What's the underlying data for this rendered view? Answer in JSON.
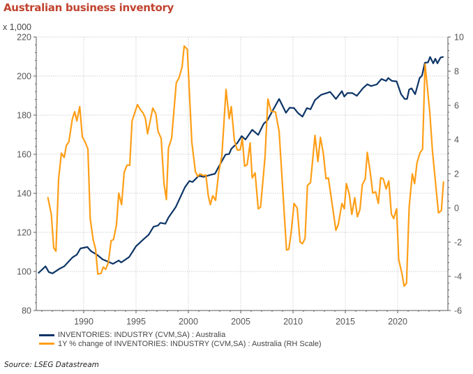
{
  "page": {
    "title": "Australian business inventory",
    "unit_label": "x 1,000",
    "source": "Source:  LSEG Datastream"
  },
  "chart_data": {
    "type": "line",
    "title": "Australian business inventory",
    "xlabel": "",
    "ylabel": "x 1,000",
    "ylabel_right": "",
    "grid": true,
    "legend_position": "bottom-left",
    "xlim": [
      1985.5,
      2024.8
    ],
    "ylim": [
      80,
      220
    ],
    "ylim_right": [
      -6,
      10
    ],
    "x_ticks": [
      1990,
      1995,
      2000,
      2005,
      2010,
      2015,
      2020
    ],
    "y_ticks": [
      80,
      100,
      120,
      140,
      160,
      180,
      200,
      220
    ],
    "y_ticks_right": [
      -6,
      -4,
      -2,
      0,
      2,
      4,
      6,
      8,
      10
    ],
    "series": [
      {
        "name": "INVENTORIES: INDUSTRY (CVM,SA) : Australia",
        "axis": "left",
        "color": "#0c3466",
        "x": [
          1985.69,
          1986.35,
          1986.67,
          1987.02,
          1987.69,
          1988.13,
          1988.91,
          1989.35,
          1989.69,
          1990.35,
          1990.69,
          1991.25,
          1991.8,
          1992.8,
          1993.35,
          1993.58,
          1994.35,
          1995.0,
          1995.67,
          1996.2,
          1996.67,
          1997.1,
          1997.33,
          1997.8,
          1998.1,
          1998.8,
          1999.67,
          2000.1,
          2000.4,
          2001.0,
          2001.45,
          2002.1,
          2002.55,
          2002.8,
          2003.55,
          2003.9,
          2004.1,
          2004.67,
          2005.1,
          2005.45,
          2006.1,
          2006.67,
          2007.2,
          2007.55,
          2008.0,
          2008.67,
          2009.33,
          2009.67,
          2010.1,
          2010.45,
          2010.9,
          2011.33,
          2011.67,
          2012.1,
          2012.67,
          2013.2,
          2013.55,
          2014.1,
          2014.67,
          2014.9,
          2015.2,
          2015.67,
          2016.1,
          2016.67,
          2017.1,
          2017.45,
          2018.0,
          2018.45,
          2018.9,
          2019.1,
          2019.45,
          2019.9,
          2020.33,
          2020.67,
          2020.9,
          2021.1,
          2021.33,
          2021.67,
          2022.1,
          2022.33,
          2022.6,
          2022.9,
          2023.1,
          2023.4,
          2023.6,
          2023.8,
          2024.1,
          2024.33
        ],
        "values": [
          99.3,
          102.6,
          99.6,
          99.0,
          101.4,
          102.6,
          107.1,
          108.6,
          111.8,
          112.5,
          110.4,
          108.6,
          106.2,
          103.9,
          105.6,
          104.6,
          107.4,
          112.9,
          116.3,
          118.7,
          122.9,
          123.5,
          124.9,
          124.4,
          127.6,
          133.0,
          143.1,
          146.3,
          145.8,
          149.0,
          148.4,
          149.4,
          150.0,
          152.6,
          159.8,
          160.1,
          162.7,
          165.7,
          169.3,
          167.5,
          172.5,
          169.9,
          175.6,
          177.3,
          181.8,
          188.3,
          181.2,
          183.8,
          183.6,
          181.2,
          179.2,
          183.6,
          183.0,
          187.7,
          190.4,
          191.3,
          191.9,
          188.3,
          192.3,
          189.5,
          191.3,
          191.3,
          189.9,
          193.7,
          195.8,
          194.9,
          195.7,
          198.5,
          197.5,
          199.0,
          197.5,
          197.3,
          190.7,
          188.3,
          188.3,
          193.1,
          193.7,
          190.7,
          199.0,
          200.2,
          206.8,
          207.0,
          209.8,
          206.5,
          208.9,
          206.5,
          209.5,
          209.8
        ]
      },
      {
        "name": "1Y % change of INVENTORIES: INDUSTRY (CVM,SA) : Australia (RH Scale)",
        "axis": "right",
        "color": "#ff9e16",
        "x": [
          1986.58,
          1986.9,
          1987.13,
          1987.35,
          1987.6,
          1987.87,
          1988.13,
          1988.35,
          1988.58,
          1988.9,
          1989.13,
          1989.35,
          1989.62,
          1989.87,
          1990.13,
          1990.4,
          1990.62,
          1990.9,
          1991.13,
          1991.35,
          1991.65,
          1991.87,
          1992.1,
          1992.35,
          1992.62,
          1992.85,
          1993.13,
          1993.35,
          1993.62,
          1993.87,
          1994.13,
          1994.4,
          1994.62,
          1995.13,
          1995.47,
          1995.67,
          1995.9,
          1996.1,
          1996.6,
          1996.9,
          1997.1,
          1997.4,
          1997.67,
          1997.9,
          1998.1,
          1998.4,
          1998.85,
          1999.1,
          1999.4,
          1999.6,
          1999.9,
          2000.33,
          2000.67,
          2000.9,
          2001.1,
          2001.45,
          2001.67,
          2001.9,
          2002.1,
          2002.33,
          2002.6,
          2002.9,
          2003.2,
          2003.6,
          2003.9,
          2004.1,
          2004.4,
          2004.67,
          2004.95,
          2005.15,
          2005.38,
          2005.62,
          2005.9,
          2006.1,
          2006.38,
          2006.67,
          2006.9,
          2007.33,
          2007.6,
          2007.9,
          2008.33,
          2008.67,
          2009.38,
          2009.6,
          2009.82,
          2010.1,
          2010.4,
          2010.67,
          2010.9,
          2011.15,
          2011.38,
          2011.67,
          2012.1,
          2012.38,
          2012.62,
          2012.9,
          2013.15,
          2013.38,
          2014.1,
          2014.33,
          2014.67,
          2014.9,
          2015.1,
          2015.38,
          2015.62,
          2015.9,
          2016.15,
          2016.4,
          2016.62,
          2016.9,
          2017.1,
          2017.38,
          2017.62,
          2017.9,
          2018.15,
          2018.38,
          2018.62,
          2018.9,
          2019.15,
          2019.4,
          2019.62,
          2019.9,
          2020.1,
          2020.4,
          2020.62,
          2020.85,
          2021.1,
          2021.4,
          2021.62,
          2021.85,
          2022.15,
          2022.38,
          2022.62,
          2023.07,
          2023.33,
          2023.67,
          2023.9,
          2024.18,
          2024.38
        ],
        "values": [
          0.6,
          -0.36,
          -2.33,
          -2.53,
          1.69,
          3.21,
          2.95,
          3.66,
          3.86,
          5.16,
          5.63,
          5.09,
          5.93,
          4.16,
          3.86,
          3.45,
          -0.62,
          -1.85,
          -2.4,
          -3.87,
          -3.83,
          -3.46,
          -3.59,
          -3.21,
          -1.92,
          -1.85,
          -0.97,
          0.87,
          0.19,
          2.09,
          2.5,
          2.5,
          5.09,
          6.04,
          5.7,
          5.56,
          5.22,
          4.34,
          5.84,
          5.5,
          4.48,
          4.07,
          1.42,
          0.49,
          3.52,
          4.07,
          7.33,
          7.6,
          8.24,
          9.47,
          9.28,
          3.87,
          2.12,
          1.85,
          1.99,
          1.89,
          1.93,
          0.73,
          0.19,
          0.71,
          0.44,
          2.09,
          3.05,
          6.93,
          5.22,
          5.93,
          3.93,
          3.39,
          3.39,
          4.07,
          2.44,
          2.53,
          3.8,
          1.76,
          2.05,
          -0.05,
          0.05,
          2.98,
          6.38,
          5.66,
          5.61,
          4.48,
          -2.46,
          -2.42,
          -1.44,
          0.26,
          -0.01,
          -1.99,
          -2.09,
          -1.78,
          1.32,
          1.48,
          4.24,
          2.71,
          4.13,
          3.18,
          1.71,
          1.76,
          -1.31,
          -0.97,
          0.26,
          -0.05,
          1.42,
          0.8,
          -0.38,
          0.6,
          -0.52,
          -0.08,
          1.35,
          1.69,
          3.25,
          2.09,
          0.87,
          0.94,
          0.26,
          1.76,
          1.71,
          1.11,
          1.58,
          -0.36,
          -0.62,
          -0.05,
          -3.01,
          -3.82,
          -4.57,
          -4.41,
          0.05,
          1.99,
          1.42,
          2.64,
          3.25,
          3.43,
          8.42,
          5.63,
          3.32,
          1.14,
          -0.29,
          -0.15,
          1.52
        ]
      }
    ]
  }
}
